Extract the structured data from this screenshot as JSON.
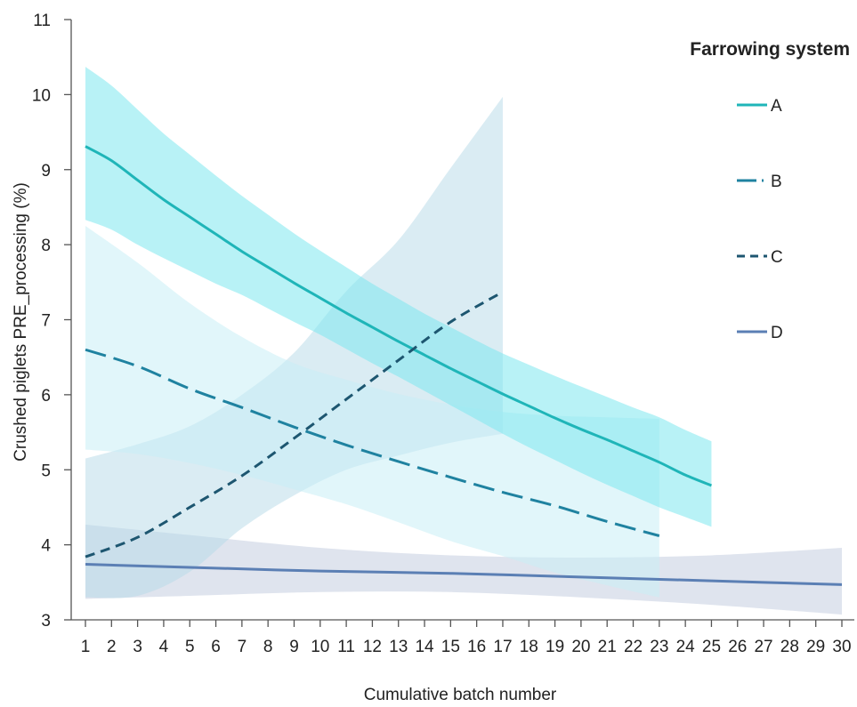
{
  "chart_data": {
    "type": "line",
    "xlabel": "Cumulative batch number",
    "ylabel": "Crushed piglets PRE_processing (%)",
    "legend_title": "Farrowing system",
    "legend_position": "top-right",
    "xlim": [
      1,
      30
    ],
    "ylim": [
      3,
      11
    ],
    "x_ticks": [
      1,
      2,
      3,
      4,
      5,
      6,
      7,
      8,
      9,
      10,
      11,
      12,
      13,
      14,
      15,
      16,
      17,
      18,
      19,
      20,
      21,
      22,
      23,
      24,
      25,
      26,
      27,
      28,
      29,
      30
    ],
    "y_ticks": [
      3,
      4,
      5,
      6,
      7,
      8,
      9,
      10,
      11
    ],
    "grid": false,
    "series": [
      {
        "name": "A",
        "line_style": "solid",
        "line_color": "#1fb5b8",
        "band_color": "#7ee8ef",
        "band_opacity": 0.55,
        "x": [
          1,
          2,
          3,
          4,
          5,
          6,
          7,
          8,
          9,
          10,
          11,
          12,
          13,
          14,
          15,
          16,
          17,
          18,
          19,
          20,
          21,
          22,
          23,
          24,
          25
        ],
        "y": [
          9.31,
          9.12,
          8.86,
          8.6,
          8.37,
          8.14,
          7.91,
          7.7,
          7.49,
          7.29,
          7.09,
          6.9,
          6.71,
          6.53,
          6.35,
          6.18,
          6.01,
          5.85,
          5.69,
          5.54,
          5.4,
          5.25,
          5.1,
          4.93,
          4.79
        ],
        "lower": [
          8.33,
          8.2,
          8.0,
          7.82,
          7.65,
          7.48,
          7.33,
          7.15,
          6.97,
          6.8,
          6.61,
          6.42,
          6.24,
          6.05,
          5.86,
          5.67,
          5.48,
          5.3,
          5.13,
          4.96,
          4.8,
          4.65,
          4.5,
          4.37,
          4.24
        ],
        "upper": [
          10.37,
          10.12,
          9.8,
          9.48,
          9.2,
          8.92,
          8.65,
          8.4,
          8.15,
          7.92,
          7.7,
          7.48,
          7.28,
          7.08,
          6.9,
          6.72,
          6.55,
          6.4,
          6.25,
          6.11,
          5.97,
          5.83,
          5.7,
          5.53,
          5.38
        ]
      },
      {
        "name": "B",
        "line_style": "long-dash",
        "line_color": "#1f82a0",
        "band_color": "#c8eef6",
        "band_opacity": 0.55,
        "x": [
          1,
          3,
          5,
          7,
          9,
          11,
          13,
          15,
          17,
          19,
          21,
          23
        ],
        "y": [
          6.6,
          6.38,
          6.08,
          5.83,
          5.57,
          5.33,
          5.11,
          4.9,
          4.7,
          4.52,
          4.31,
          4.12
        ],
        "lower": [
          5.27,
          5.21,
          5.09,
          4.93,
          4.74,
          4.54,
          4.3,
          4.05,
          3.85,
          3.63,
          3.46,
          3.3
        ],
        "upper": [
          8.25,
          7.76,
          7.22,
          6.77,
          6.42,
          6.2,
          6.01,
          5.87,
          5.77,
          5.72,
          5.7,
          5.68
        ]
      },
      {
        "name": "C",
        "line_style": "short-dash",
        "line_color": "#1d5670",
        "band_color": "#b5d9e8",
        "band_opacity": 0.5,
        "x": [
          1,
          3,
          5,
          7,
          9,
          11,
          13,
          15,
          17
        ],
        "y": [
          3.84,
          4.1,
          4.5,
          4.92,
          5.42,
          5.94,
          6.46,
          6.97,
          7.37
        ],
        "lower": [
          3.3,
          3.32,
          3.64,
          4.22,
          4.66,
          5.0,
          5.19,
          5.36,
          5.48
        ],
        "upper": [
          5.15,
          5.34,
          5.58,
          6.0,
          6.56,
          7.38,
          8.06,
          9.02,
          9.97
        ]
      },
      {
        "name": "D",
        "line_style": "solid",
        "line_color": "#5b7fb4",
        "band_color": "#c4cee0",
        "band_opacity": 0.55,
        "x": [
          1,
          5,
          10,
          15,
          20,
          25,
          30
        ],
        "y": [
          3.74,
          3.7,
          3.65,
          3.62,
          3.57,
          3.52,
          3.47
        ],
        "lower": [
          3.28,
          3.32,
          3.37,
          3.37,
          3.3,
          3.2,
          3.07
        ],
        "upper": [
          4.27,
          4.13,
          3.96,
          3.86,
          3.83,
          3.86,
          3.96
        ]
      }
    ]
  }
}
